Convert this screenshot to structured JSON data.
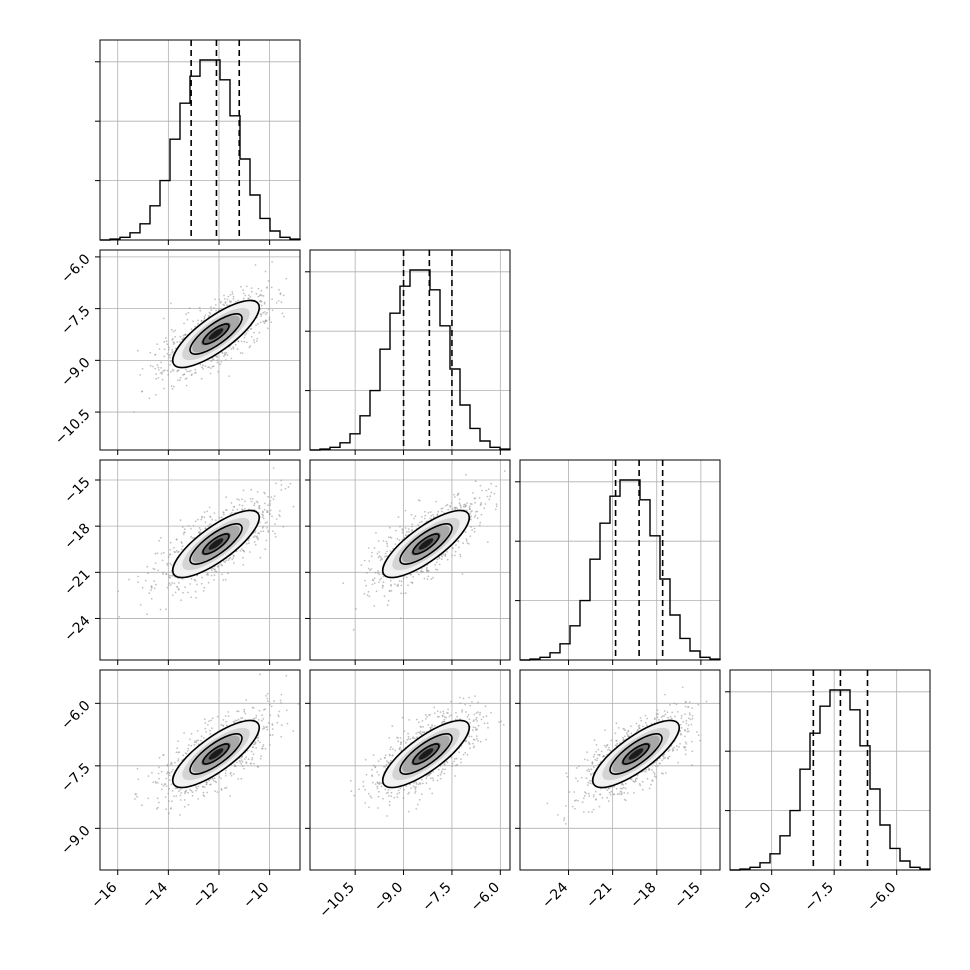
{
  "chart_data": {
    "type": "corner",
    "grid": true,
    "xlabel": "",
    "ylabel": "",
    "parameters": [
      {
        "index": 0,
        "xlim": [
          -16.7,
          -8.8
        ],
        "xticks": [
          -16,
          -14,
          -12,
          -10
        ],
        "xticklabels": [
          "−16",
          "−14",
          "−12",
          "−10"
        ],
        "quantiles": [
          -13.1,
          -12.1,
          -11.2
        ],
        "hist_y": [
          0,
          0.5,
          1.5,
          4,
          9,
          19,
          33,
          56,
          76,
          91,
          100,
          100,
          89,
          69,
          45,
          25,
          12,
          5,
          1.5,
          0.5
        ]
      },
      {
        "index": 1,
        "xlim": [
          -11.9,
          -5.7
        ],
        "xticks": [
          -10.5,
          -9.0,
          -7.5,
          -6.0
        ],
        "xticklabels": [
          "−10.5",
          "−9.0",
          "−7.5",
          "−6.0"
        ],
        "quantiles": [
          -9.0,
          -8.2,
          -7.5
        ],
        "hist_y": [
          0,
          0.5,
          1.5,
          4,
          9,
          19,
          33,
          56,
          76,
          91,
          100,
          100,
          89,
          69,
          45,
          25,
          12,
          5,
          1.5,
          0.5
        ]
      },
      {
        "index": 2,
        "xlim": [
          -27.3,
          -13.7
        ],
        "xticks": [
          -24,
          -21,
          -18,
          -15
        ],
        "xticklabels": [
          "−24",
          "−21",
          "−18",
          "−15"
        ],
        "quantiles": [
          -20.8,
          -19.2,
          -17.6
        ],
        "hist_y": [
          0,
          0.5,
          1.5,
          4,
          9,
          19,
          33,
          56,
          76,
          91,
          100,
          100,
          89,
          69,
          45,
          25,
          12,
          5,
          1.5,
          0.5
        ]
      },
      {
        "index": 3,
        "xlim": [
          -10.0,
          -5.2
        ],
        "xticks": [
          -9.0,
          -7.5,
          -6.0
        ],
        "xticklabels": [
          "−9.0",
          "−7.5",
          "−6.0"
        ],
        "quantiles": [
          -8.0,
          -7.35,
          -6.7
        ],
        "hist_y": [
          0,
          0.5,
          1.5,
          4,
          9,
          19,
          33,
          56,
          76,
          91,
          100,
          100,
          89,
          69,
          45,
          25,
          12,
          5,
          1.5,
          0.5
        ]
      }
    ],
    "row_yticks": {
      "1": {
        "ylim": [
          -11.6,
          -5.8
        ],
        "yticks": [
          -6.0,
          -7.5,
          -9.0,
          -10.5
        ],
        "yticklabels": [
          "−6.0",
          "−7.5",
          "−9.0",
          "−10.5"
        ]
      },
      "2": {
        "ylim": [
          -26.7,
          -13.7
        ],
        "yticks": [
          -15,
          -18,
          -21,
          -24
        ],
        "yticklabels": [
          "−15",
          "−18",
          "−21",
          "−24"
        ]
      },
      "3": {
        "ylim": [
          -10.0,
          -5.2
        ],
        "yticks": [
          -6.0,
          -7.5,
          -9.0
        ],
        "yticklabels": [
          "−6.0",
          "−7.5",
          "−9.0"
        ]
      }
    }
  }
}
